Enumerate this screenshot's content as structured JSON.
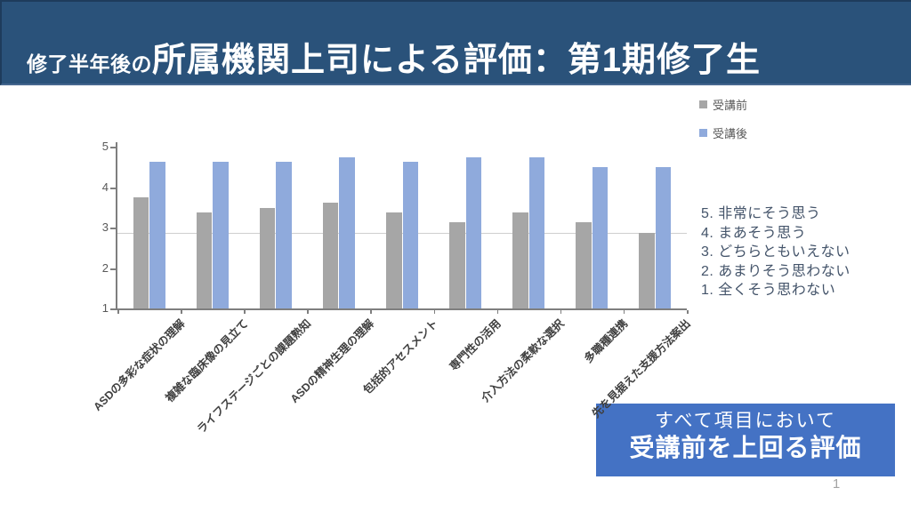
{
  "slide": {
    "title_prefix": "修了半年後の",
    "title_main": "所属機関上司による評価：第1期修了生",
    "page_number": "1",
    "colors": {
      "title_bg": "#2A527A",
      "callout_bg": "#4472C4",
      "pre_bar": "#A6A6A6",
      "post_bar": "#8FAADC",
      "axis": "#7F7F7F",
      "axis_text": "#595959",
      "scale_text": "#44546A",
      "reference_line": "#CFCFCF"
    }
  },
  "legend": {
    "items": [
      {
        "label": "受講前",
        "color": "#A6A6A6"
      },
      {
        "label": "受講後",
        "color": "#8FAADC"
      }
    ]
  },
  "scale_legend": {
    "lines": [
      "5. 非常にそう思う",
      "4. まあそう思う",
      "3. どちらともいえない",
      "2. あまりそう思わない",
      "1. 全くそう思わない"
    ]
  },
  "callout": {
    "line1": "すべて項目において",
    "line2": "受講前を上回る評価"
  },
  "chart_data": {
    "type": "bar",
    "title": "",
    "categories": [
      "ASDの多彩な症状の理解",
      "複雑な臨床像の見立て",
      "ライフステージごとの課題熟知",
      "ASDの精神生理の理解",
      "包括的アセスメント",
      "専門性の活用",
      "介入方法の柔軟な選択",
      "多職種連携",
      "先を見据えた支援方法案出"
    ],
    "series": [
      {
        "name": "受講前",
        "color": "#A6A6A6",
        "values": [
          3.75,
          3.38,
          3.5,
          3.63,
          3.38,
          3.13,
          3.38,
          3.13,
          2.88
        ]
      },
      {
        "name": "受講後",
        "color": "#8FAADC",
        "values": [
          4.63,
          4.63,
          4.63,
          4.75,
          4.63,
          4.75,
          4.75,
          4.5,
          4.5
        ]
      }
    ],
    "xlabel": "",
    "ylabel": "",
    "ylim": [
      1,
      5
    ],
    "yticks": [
      1,
      2,
      3,
      4,
      5
    ],
    "reference_line": 2.87,
    "grid": false,
    "legend_position": "top-right"
  }
}
